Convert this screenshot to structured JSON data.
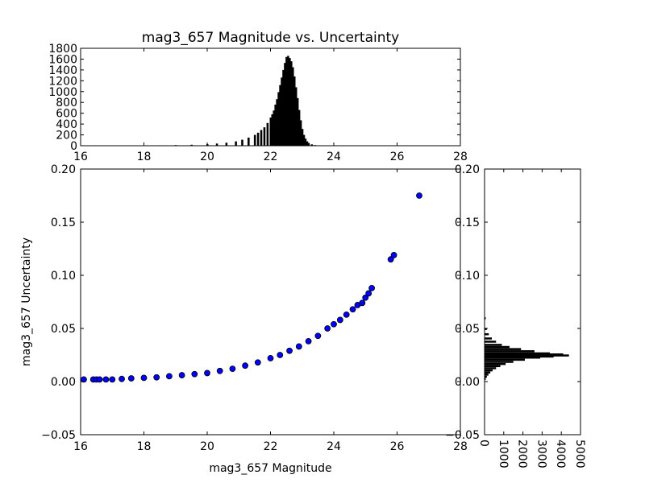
{
  "chart_data": [
    {
      "type": "bar",
      "panel": "top-histogram",
      "title": "mag3_657 Magnitude vs. Uncertainty",
      "xlabel": "",
      "ylabel": "",
      "xlim": [
        16,
        28
      ],
      "ylim": [
        0,
        1800
      ],
      "xticks": [
        16,
        18,
        20,
        22,
        24,
        26,
        28
      ],
      "yticks": [
        0,
        200,
        400,
        600,
        800,
        1000,
        1200,
        1400,
        1600,
        1800
      ],
      "bin_width": 0.05,
      "x": [
        18.0,
        18.5,
        19.0,
        19.5,
        20.0,
        20.3,
        20.6,
        20.9,
        21.1,
        21.3,
        21.5,
        21.6,
        21.7,
        21.8,
        21.9,
        22.0,
        22.05,
        22.1,
        22.15,
        22.2,
        22.25,
        22.3,
        22.35,
        22.4,
        22.45,
        22.5,
        22.55,
        22.6,
        22.65,
        22.7,
        22.75,
        22.8,
        22.85,
        22.9,
        22.95,
        23.0,
        23.05,
        23.1,
        23.15,
        23.2,
        23.3,
        23.4,
        23.6,
        23.8,
        24.0,
        24.5,
        25.0,
        25.8,
        26.7
      ],
      "values": [
        5,
        8,
        12,
        18,
        28,
        40,
        55,
        80,
        110,
        150,
        200,
        240,
        290,
        340,
        420,
        520,
        580,
        650,
        760,
        860,
        990,
        1120,
        1260,
        1400,
        1530,
        1640,
        1660,
        1620,
        1560,
        1450,
        1280,
        1080,
        880,
        660,
        470,
        310,
        200,
        130,
        80,
        50,
        25,
        12,
        6,
        3,
        2,
        1,
        1,
        1,
        1
      ]
    },
    {
      "type": "scatter",
      "panel": "main-scatter",
      "title": "",
      "xlabel": "mag3_657 Magnitude",
      "ylabel": "mag3_657 Uncertainty",
      "xlim": [
        16,
        28
      ],
      "ylim": [
        -0.05,
        0.2
      ],
      "xticks": [
        16,
        18,
        20,
        22,
        24,
        26,
        28
      ],
      "yticks": [
        -0.05,
        0.0,
        0.05,
        0.1,
        0.15,
        0.2
      ],
      "x": [
        16.1,
        16.4,
        16.5,
        16.6,
        16.8,
        17.0,
        17.3,
        17.6,
        18.0,
        18.4,
        18.8,
        19.2,
        19.6,
        20.0,
        20.4,
        20.8,
        21.2,
        21.6,
        22.0,
        22.3,
        22.6,
        22.9,
        23.2,
        23.5,
        23.8,
        24.0,
        24.2,
        24.4,
        24.6,
        24.75,
        24.9,
        25.0,
        25.1,
        25.2,
        25.8,
        25.9,
        26.7
      ],
      "y": [
        0.002,
        0.002,
        0.002,
        0.002,
        0.002,
        0.002,
        0.0025,
        0.003,
        0.0035,
        0.004,
        0.005,
        0.006,
        0.007,
        0.008,
        0.01,
        0.012,
        0.015,
        0.018,
        0.022,
        0.025,
        0.029,
        0.033,
        0.038,
        0.043,
        0.05,
        0.054,
        0.058,
        0.063,
        0.068,
        0.072,
        0.074,
        0.079,
        0.083,
        0.088,
        0.115,
        0.119,
        0.175
      ],
      "marker_color": "#0000ff"
    },
    {
      "type": "bar",
      "panel": "right-histogram",
      "orientation": "horizontal",
      "title": "",
      "xlabel": "",
      "ylabel": "",
      "xlim": [
        0,
        5000
      ],
      "ylim": [
        -0.05,
        0.2
      ],
      "xticks": [
        0,
        1000,
        2000,
        3000,
        4000,
        5000
      ],
      "yticks": [
        -0.05,
        0.0,
        0.05,
        0.1,
        0.15,
        0.2
      ],
      "bin_width": 0.001,
      "y": [
        0.003,
        0.005,
        0.007,
        0.009,
        0.011,
        0.013,
        0.015,
        0.017,
        0.019,
        0.021,
        0.023,
        0.024,
        0.025,
        0.026,
        0.027,
        0.029,
        0.031,
        0.033,
        0.035,
        0.038,
        0.041,
        0.045,
        0.05,
        0.06,
        0.08,
        0.12,
        0.175
      ],
      "values": [
        60,
        120,
        200,
        300,
        420,
        600,
        820,
        1100,
        1500,
        2100,
        2900,
        3600,
        4400,
        4100,
        3400,
        2600,
        1900,
        1300,
        900,
        600,
        380,
        220,
        120,
        60,
        20,
        5,
        2
      ]
    }
  ]
}
